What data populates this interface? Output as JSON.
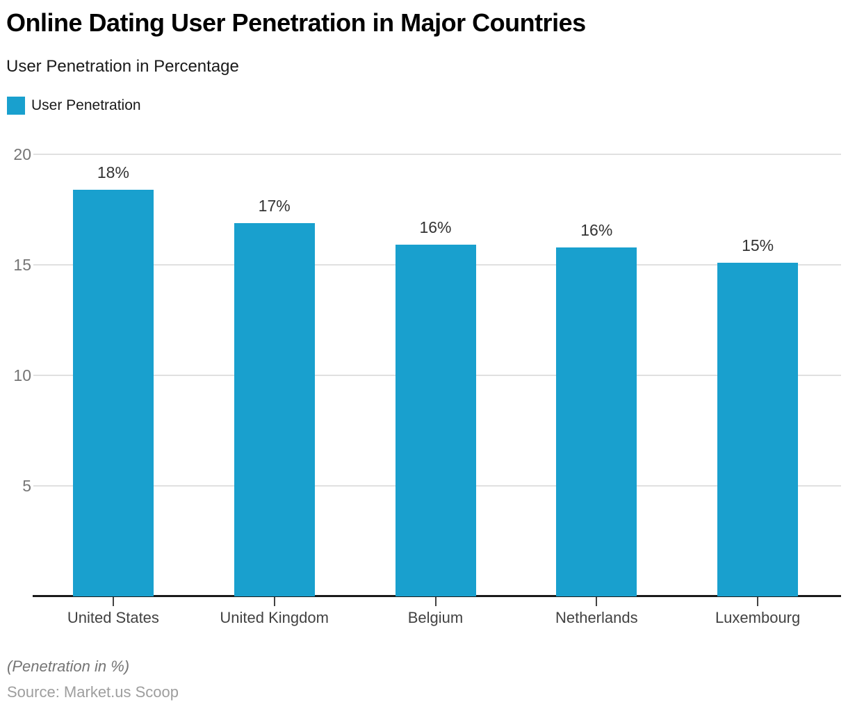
{
  "header": {
    "title": "Online Dating User Penetration in Major Countries",
    "subtitle": "User Penetration in Percentage"
  },
  "legend": {
    "label": "User Penetration"
  },
  "chart_data": {
    "type": "bar",
    "title": "Online Dating User Penetration in Major Countries",
    "subtitle": "User Penetration in Percentage",
    "series_name": "User Penetration",
    "categories": [
      "United States",
      "United Kingdom",
      "Belgium",
      "Netherlands",
      "Luxembourg"
    ],
    "values": [
      18.4,
      16.9,
      15.9,
      15.8,
      15.1
    ],
    "value_labels": [
      "18%",
      "17%",
      "16%",
      "16%",
      "15%"
    ],
    "xlabel": "",
    "ylabel": "",
    "ylim": [
      0,
      20
    ],
    "yticks": [
      5,
      10,
      15,
      20
    ],
    "grid": "horizontal",
    "legend_position": "top-left",
    "colors": {
      "bar": "#19A0CE",
      "gridline": "#E0E0E0",
      "axis_line": "#1A1A1A",
      "y_tick_label": "#757575",
      "category_label": "#424242",
      "value_label": "#333333"
    }
  },
  "footer": {
    "note": "(Penetration in %)",
    "source": "Source: Market.us Scoop"
  }
}
